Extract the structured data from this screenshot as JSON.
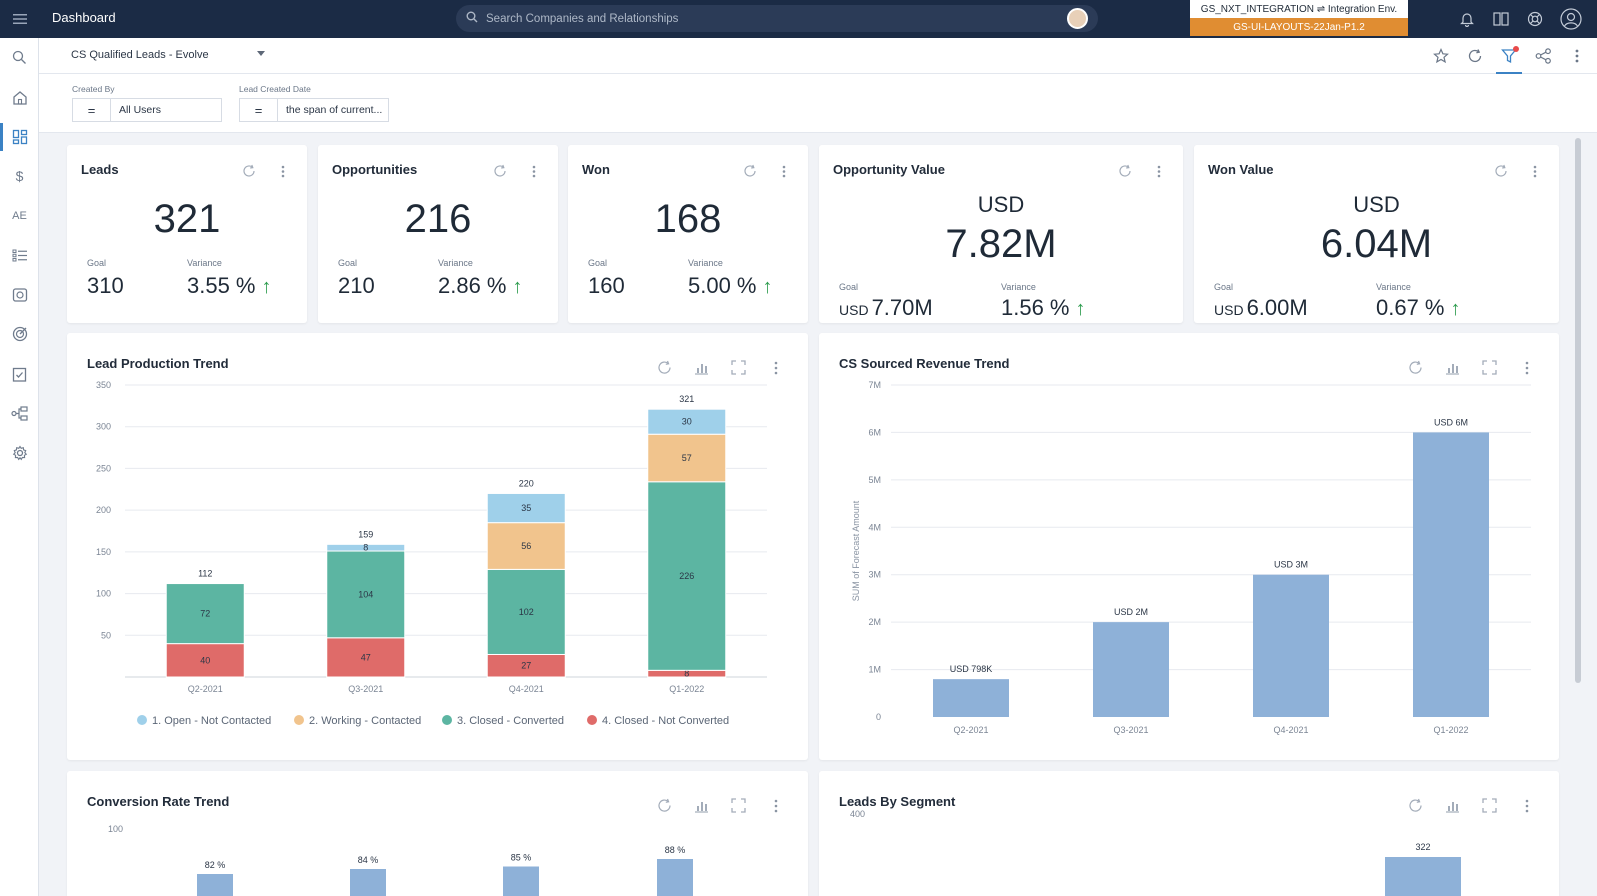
{
  "app": {
    "title": "Dashboard",
    "search_placeholder": "Search Companies and Relationships",
    "env_line1": "GS_NXT_INTEGRATION ⇌ Integration Env.",
    "env_line2": "GS-UI-LAYOUTS-22Jan-P1.2"
  },
  "sidebar": {
    "items": [
      {
        "icon": "search-icon"
      },
      {
        "icon": "home-icon"
      },
      {
        "icon": "dashboard-icon"
      },
      {
        "icon": "dollar-icon",
        "label": "$"
      },
      {
        "icon": "ae-icon",
        "label": "AE"
      },
      {
        "icon": "list-icon"
      },
      {
        "icon": "timeline-icon"
      },
      {
        "icon": "target-icon"
      },
      {
        "icon": "checklist-icon"
      },
      {
        "icon": "hierarchy-icon"
      },
      {
        "icon": "gear-icon"
      }
    ]
  },
  "subheader": {
    "layout_name": "CS Qualified Leads - Evolve"
  },
  "filters": [
    {
      "label": "Created By",
      "operator": "=",
      "value": "All Users"
    },
    {
      "label": "Lead Created Date",
      "operator": "=",
      "value": "the span of current..."
    }
  ],
  "kpis": [
    {
      "title": "Leads",
      "value": "321",
      "goal_label": "Goal",
      "goal": "310",
      "variance_label": "Variance",
      "variance": "3.55 %"
    },
    {
      "title": "Opportunities",
      "value": "216",
      "goal_label": "Goal",
      "goal": "210",
      "variance_label": "Variance",
      "variance": "2.86 %"
    },
    {
      "title": "Won",
      "value": "168",
      "goal_label": "Goal",
      "goal": "160",
      "variance_label": "Variance",
      "variance": "5.00 %"
    },
    {
      "title": "Opportunity Value",
      "currency": "USD",
      "value": "7.82M",
      "goal_label": "Goal",
      "goal_currency": "USD",
      "goal": "7.70M",
      "variance_label": "Variance",
      "variance": "1.56 %"
    },
    {
      "title": "Won Value",
      "currency": "USD",
      "value": "6.04M",
      "goal_label": "Goal",
      "goal_currency": "USD",
      "goal": "6.00M",
      "variance_label": "Variance",
      "variance": "0.67 %"
    }
  ],
  "widgets": {
    "lead_production": {
      "title": "Lead Production Trend"
    },
    "cs_revenue": {
      "title": "CS Sourced Revenue Trend"
    },
    "conversion": {
      "title": "Conversion Rate Trend"
    },
    "segment": {
      "title": "Leads By Segment"
    }
  },
  "colors": {
    "open": "#9fd0ea",
    "working": "#f1c48d",
    "converted": "#5cb5a2",
    "not_converted": "#df6b69",
    "revenue_bar": "#8eb1d8",
    "accent": "#3b82c4",
    "up_arrow": "#2e9d4f"
  },
  "chart_data": [
    {
      "type": "bar",
      "stacked": true,
      "categories": [
        "Q2-2021",
        "Q3-2021",
        "Q4-2021",
        "Q1-2022"
      ],
      "series": [
        {
          "name": "4. Closed - Not Converted",
          "values": [
            40,
            47,
            27,
            8
          ]
        },
        {
          "name": "3. Closed - Converted",
          "values": [
            72,
            104,
            102,
            226
          ]
        },
        {
          "name": "2. Working - Contacted",
          "values": [
            0,
            0,
            56,
            57
          ]
        },
        {
          "name": "1. Open - Not Contacted",
          "values": [
            0,
            8,
            35,
            30
          ]
        }
      ],
      "totals": [
        112,
        159,
        220,
        321
      ],
      "y_ticks": [
        50,
        100,
        150,
        200,
        250,
        300,
        350
      ],
      "ylim": [
        0,
        350
      ],
      "legend": [
        "1. Open - Not Contacted",
        "2. Working - Contacted",
        "3. Closed - Converted",
        "4. Closed - Not Converted"
      ],
      "legend_position": "bottom"
    },
    {
      "type": "bar",
      "categories": [
        "Q2-2021",
        "Q3-2021",
        "Q4-2021",
        "Q1-2022"
      ],
      "values": [
        798000,
        2000000,
        3000000,
        6000000
      ],
      "value_labels": [
        "USD 798K",
        "USD 2M",
        "USD 3M",
        "USD 6M"
      ],
      "ylabel": "SUM of Forecast Amount",
      "y_ticks": [
        "0",
        "1M",
        "2M",
        "3M",
        "4M",
        "5M",
        "6M",
        "7M"
      ],
      "ylim": [
        0,
        7000000
      ]
    },
    {
      "type": "bar",
      "categories": [
        "Q2-2021",
        "Q3-2021",
        "Q4-2021",
        "Q1-2022"
      ],
      "values": [
        82,
        84,
        85,
        88
      ],
      "value_labels": [
        "82 %",
        "84 %",
        "85 %",
        "88 %"
      ],
      "y_ticks": [
        "100"
      ],
      "ylim": [
        0,
        100
      ]
    },
    {
      "type": "bar",
      "value_labels": [
        "322"
      ],
      "values": [
        322
      ],
      "y_ticks": [
        "400"
      ],
      "ylim": [
        0,
        400
      ]
    }
  ]
}
